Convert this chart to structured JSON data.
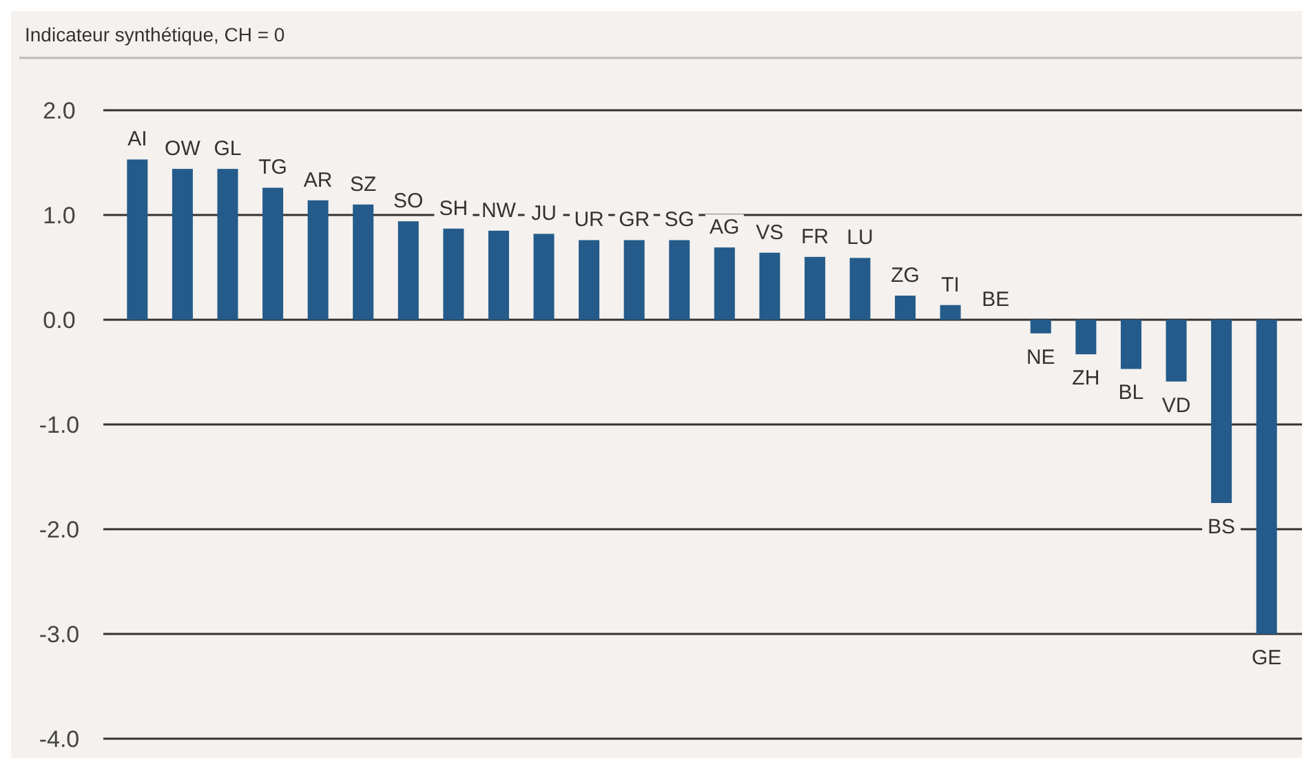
{
  "chart_data": {
    "type": "bar",
    "ylabel": "Indicateur synthétique, CH = 0",
    "categories": [
      "AI",
      "OW",
      "GL",
      "TG",
      "AR",
      "SZ",
      "SO",
      "SH",
      "NW",
      "JU",
      "UR",
      "GR",
      "SG",
      "AG",
      "VS",
      "FR",
      "LU",
      "ZG",
      "TI",
      "BE",
      "NE",
      "ZH",
      "BL",
      "VD",
      "BS",
      "GE"
    ],
    "values": [
      1.53,
      1.44,
      1.44,
      1.26,
      1.14,
      1.1,
      0.94,
      0.87,
      0.85,
      0.82,
      0.76,
      0.76,
      0.76,
      0.69,
      0.64,
      0.6,
      0.59,
      0.23,
      0.14,
      0,
      -0.13,
      -0.33,
      -0.47,
      -0.59,
      -1.75,
      -3.0
    ],
    "color": "#245b8a",
    "ylim": [
      -4,
      2.5
    ],
    "yticks": [
      {
        "value": 2,
        "label": "2.0"
      },
      {
        "value": 1,
        "label": "1.0"
      },
      {
        "value": 0,
        "label": "0.0"
      },
      {
        "value": -1,
        "label": "-1.0"
      },
      {
        "value": -2,
        "label": "-2.0"
      },
      {
        "value": -3,
        "label": "-3.0"
      },
      {
        "value": -4,
        "label": "-4.0"
      }
    ],
    "grid": "y"
  }
}
